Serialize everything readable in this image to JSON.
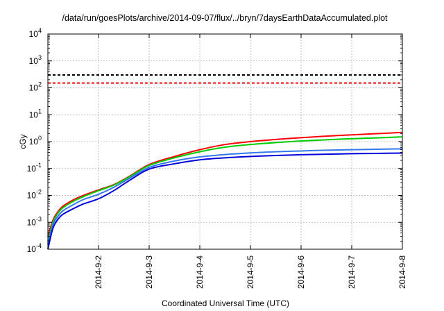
{
  "chart_data": {
    "type": "line",
    "title": "/data/run/goesPlots/archive/2014-09-07/flux/../bryn/7daysEarthDataAccumulated.plot",
    "xlabel": "Coordinated Universal Time (UTC)",
    "ylabel": "cGy",
    "yscale": "log",
    "ylim": [
      0.0001,
      10000
    ],
    "xlim": [
      "2014-09-01",
      "2014-09-08"
    ],
    "grid": true,
    "y_ticks": [
      {
        "base": "10",
        "exp": "-4",
        "value": 0.0001
      },
      {
        "base": "10",
        "exp": "-3",
        "value": 0.001
      },
      {
        "base": "10",
        "exp": "-2",
        "value": 0.01
      },
      {
        "base": "10",
        "exp": "-1",
        "value": 0.1
      },
      {
        "base": "10",
        "exp": "0",
        "value": 1
      },
      {
        "base": "10",
        "exp": "1",
        "value": 10
      },
      {
        "base": "10",
        "exp": "2",
        "value": 100
      },
      {
        "base": "10",
        "exp": "3",
        "value": 1000
      },
      {
        "base": "10",
        "exp": "4",
        "value": 10000
      }
    ],
    "x_ticks": [
      {
        "label": "2014-9-2",
        "date": "2014-09-02"
      },
      {
        "label": "2014-9-3",
        "date": "2014-09-03"
      },
      {
        "label": "2014-9-4",
        "date": "2014-09-04"
      },
      {
        "label": "2014-9-5",
        "date": "2014-09-05"
      },
      {
        "label": "2014-9-6",
        "date": "2014-09-06"
      },
      {
        "label": "2014-9-7",
        "date": "2014-09-07"
      },
      {
        "label": "2014-9-8",
        "date": "2014-09-08"
      }
    ],
    "reference_lines": [
      {
        "value": 300,
        "color": "#000000",
        "dash": "dashed"
      },
      {
        "value": 150,
        "color": "#ff0000",
        "dash": "dashed"
      }
    ],
    "series": [
      {
        "color": "#ff0000",
        "x": [
          "2014-09-01T00:00",
          "2014-09-01T02:24",
          "2014-09-01T04:48",
          "2014-09-01T07:12",
          "2014-09-01T12:00",
          "2014-09-01T16:48",
          "2014-09-02T00:00",
          "2014-09-02T07:12",
          "2014-09-02T14:24",
          "2014-09-03T00:00",
          "2014-09-03T12:00",
          "2014-09-04T00:00",
          "2014-09-04T12:00",
          "2014-09-05T00:00",
          "2014-09-05T12:00",
          "2014-09-06T00:00",
          "2014-09-06T12:00",
          "2014-09-07T00:00",
          "2014-09-07T12:00",
          "2014-09-08T00:00"
        ],
        "values": [
          0.0003,
          0.0012,
          0.0025,
          0.004,
          0.0068,
          0.01,
          0.016,
          0.025,
          0.05,
          0.14,
          0.28,
          0.5,
          0.78,
          1.0,
          1.2,
          1.4,
          1.6,
          1.78,
          1.98,
          2.2
        ]
      },
      {
        "color": "#00cc00",
        "x": [
          "2014-09-01T00:00",
          "2014-09-01T02:24",
          "2014-09-01T04:48",
          "2014-09-01T07:12",
          "2014-09-01T12:00",
          "2014-09-01T16:48",
          "2014-09-02T00:00",
          "2014-09-02T07:12",
          "2014-09-02T14:24",
          "2014-09-03T00:00",
          "2014-09-03T12:00",
          "2014-09-04T00:00",
          "2014-09-04T12:00",
          "2014-09-05T00:00",
          "2014-09-05T12:00",
          "2014-09-06T00:00",
          "2014-09-06T12:00",
          "2014-09-07T00:00",
          "2014-09-07T12:00",
          "2014-09-08T00:00"
        ],
        "values": [
          0.0002,
          0.001,
          0.0022,
          0.0035,
          0.006,
          0.009,
          0.015,
          0.024,
          0.048,
          0.13,
          0.25,
          0.42,
          0.62,
          0.78,
          0.92,
          1.05,
          1.17,
          1.28,
          1.38,
          1.5
        ]
      },
      {
        "color": "#3377ee",
        "x": [
          "2014-09-01T00:00",
          "2014-09-01T02:24",
          "2014-09-01T04:48",
          "2014-09-01T07:12",
          "2014-09-01T12:00",
          "2014-09-01T16:48",
          "2014-09-02T00:00",
          "2014-09-02T07:12",
          "2014-09-02T14:24",
          "2014-09-03T00:00",
          "2014-09-03T12:00",
          "2014-09-04T00:00",
          "2014-09-04T12:00",
          "2014-09-05T00:00",
          "2014-09-05T12:00",
          "2014-09-06T00:00",
          "2014-09-06T12:00",
          "2014-09-07T00:00",
          "2014-09-07T12:00",
          "2014-09-08T00:00"
        ],
        "values": [
          0.00015,
          0.0008,
          0.0017,
          0.0027,
          0.0045,
          0.007,
          0.011,
          0.02,
          0.042,
          0.11,
          0.19,
          0.27,
          0.33,
          0.38,
          0.42,
          0.45,
          0.48,
          0.5,
          0.52,
          0.54
        ]
      },
      {
        "color": "#0000dd",
        "x": [
          "2014-09-01T00:00",
          "2014-09-01T02:24",
          "2014-09-01T04:48",
          "2014-09-01T07:12",
          "2014-09-01T12:00",
          "2014-09-01T16:48",
          "2014-09-02T00:00",
          "2014-09-02T07:12",
          "2014-09-02T14:24",
          "2014-09-03T00:00",
          "2014-09-03T12:00",
          "2014-09-04T00:00",
          "2014-09-04T12:00",
          "2014-09-05T00:00",
          "2014-09-05T12:00",
          "2014-09-06T00:00",
          "2014-09-06T12:00",
          "2014-09-07T00:00",
          "2014-09-07T12:00",
          "2014-09-08T00:00"
        ],
        "values": [
          0.0001,
          0.0006,
          0.0013,
          0.002,
          0.0032,
          0.0048,
          0.0075,
          0.015,
          0.035,
          0.095,
          0.15,
          0.21,
          0.25,
          0.28,
          0.305,
          0.325,
          0.34,
          0.355,
          0.365,
          0.375
        ]
      }
    ]
  }
}
